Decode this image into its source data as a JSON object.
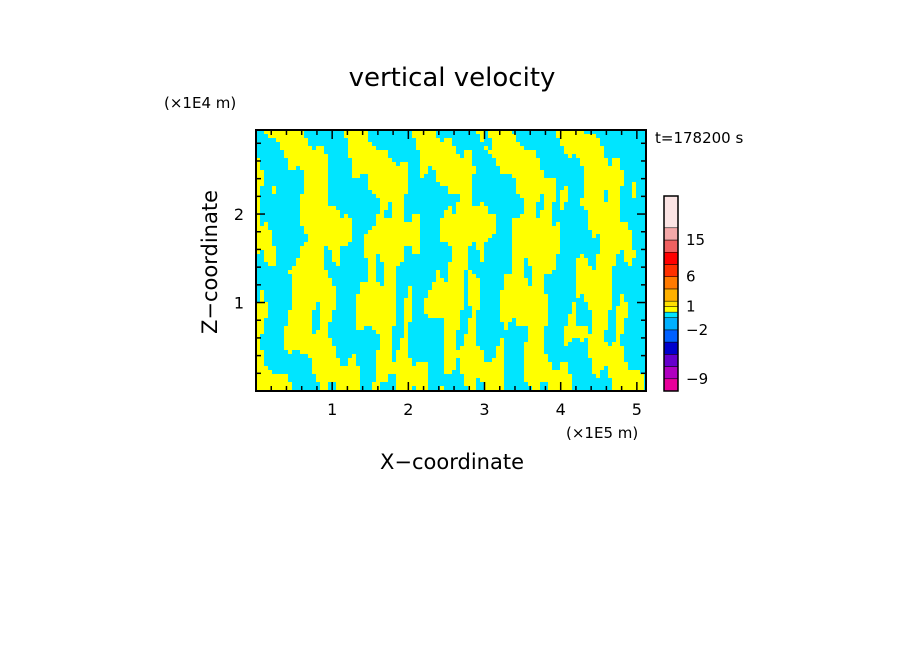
{
  "chart_data": {
    "type": "heatmap",
    "title": "vertical velocity",
    "xlabel": "X−coordinate",
    "ylabel": "Z−coordinate",
    "x_unit": "(×1E5 m)",
    "y_unit": "(×1E4 m)",
    "time_label": "t=178200 s",
    "xlim": [
      0,
      5.12
    ],
    "ylim": [
      0,
      2.95
    ],
    "x_ticks": [
      1,
      2,
      3,
      4,
      5
    ],
    "x_tick_labels": [
      "1",
      "2",
      "3",
      "4",
      "5"
    ],
    "y_ticks": [
      1,
      2
    ],
    "y_tick_labels": [
      "1",
      "2"
    ],
    "field_colors": {
      "positive": "#ffff00",
      "negative": "#00e5ff"
    },
    "colorbar": {
      "colors": [
        "#e8009a",
        "#b000c0",
        "#6600cc",
        "#0000cc",
        "#0060ff",
        "#00b0ff",
        "#00e5ff",
        "#ffff00",
        "#ffe000",
        "#ffb000",
        "#ff7a00",
        "#ff3000",
        "#ff0000",
        "#f06060",
        "#f4a8a8",
        "#fbe4e4"
      ],
      "tick_values": [
        -9,
        -2,
        1,
        6,
        15
      ],
      "tick_labels": [
        "−9",
        "−2",
        "1",
        "6",
        "15"
      ]
    }
  }
}
